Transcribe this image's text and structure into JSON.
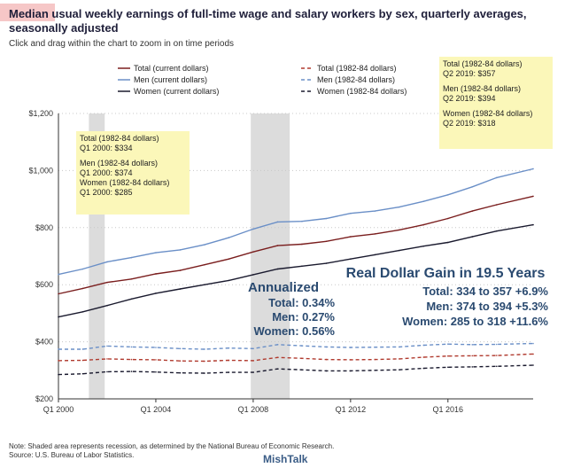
{
  "header": {
    "title": "Median usual weekly earnings of full-time wage and salary workers by sex, quarterly averages, seasonally adjusted",
    "subtitle": "Click and drag within the chart to zoom in on time periods"
  },
  "legend": {
    "items": [
      {
        "label": "Total (current dollars)",
        "color": "#7a1e1e",
        "dash": "solid"
      },
      {
        "label": "Men (current dollars)",
        "color": "#6a8fc7",
        "dash": "solid"
      },
      {
        "label": "Women (current dollars)",
        "color": "#1a1a2e",
        "dash": "solid"
      },
      {
        "label": "Total (1982-84 dollars)",
        "color": "#b03a2e",
        "dash": "dashed"
      },
      {
        "label": "Men (1982-84 dollars)",
        "color": "#6a8fc7",
        "dash": "dashed"
      },
      {
        "label": "Women (1982-84 dollars)",
        "color": "#1a1a2e",
        "dash": "dashed"
      }
    ]
  },
  "callouts": {
    "q1_2000": {
      "total_hdr": "Total (1982-84 dollars)",
      "total_val": "Q1 2000: $334",
      "men_hdr": "Men (1982-84 dollars)",
      "men_val": "Q1 2000: $374",
      "women_hdr": "Women (1982-84 dollars)",
      "women_val": "Q1 2000: $285"
    },
    "q2_2019": {
      "total_hdr": "Total (1982-84 dollars)",
      "total_val": "Q2 2019: $357",
      "men_hdr": "Men (1982-84 dollars)",
      "men_val": "Q2 2019: $394",
      "women_hdr": "Women (1982-84 dollars)",
      "women_val": "Q2 2019: $318"
    }
  },
  "annotations": {
    "annualized": {
      "title": "Annualized",
      "total": "Total: 0.34%",
      "men": "Men: 0.27%",
      "women": "Women: 0.56%"
    },
    "real_gain": {
      "title": "Real Dollar Gain in 19.5 Years",
      "total": "Total: 334 to 357 +6.9%",
      "men": "Men: 374 to 394 +5.3%",
      "women": "Women: 285 to 318 +11.6%"
    }
  },
  "footer": {
    "note": "Note: Shaded area represents recession, as determined by the National Bureau of Economic Research.",
    "source": "Source: U.S. Bureau of Labor Statistics.",
    "brand": "MishTalk"
  },
  "chart_data": {
    "type": "line",
    "x_start": 2000.0,
    "x_end": 2019.5,
    "ylim": [
      200,
      1200
    ],
    "y_ticks": [
      "$200",
      "$400",
      "$600",
      "$800",
      "$1,000",
      "$1,200"
    ],
    "y_tick_values": [
      200,
      400,
      600,
      800,
      1000,
      1200
    ],
    "x_ticks": [
      "Q1 2000",
      "Q1 2004",
      "Q1 2008",
      "Q1 2012",
      "Q1 2016"
    ],
    "x_tick_values": [
      2000,
      2004,
      2008,
      2012,
      2016
    ],
    "recessions": [
      [
        2001.25,
        2001.9
      ],
      [
        2007.9,
        2009.5
      ]
    ],
    "grid": "horizontal dotted",
    "series": [
      {
        "name": "Men (current dollars)",
        "color": "#6a8fc7",
        "dash": "solid",
        "x": [
          2000,
          2001,
          2002,
          2003,
          2004,
          2005,
          2006,
          2007,
          2008,
          2009,
          2010,
          2011,
          2012,
          2013,
          2014,
          2015,
          2016,
          2017,
          2018,
          2019.5
        ],
        "values": [
          636,
          655,
          680,
          695,
          712,
          722,
          740,
          765,
          795,
          820,
          822,
          832,
          850,
          858,
          872,
          892,
          915,
          943,
          975,
          1006
        ]
      },
      {
        "name": "Total (current dollars)",
        "color": "#7a1e1e",
        "dash": "solid",
        "x": [
          2000,
          2001,
          2002,
          2003,
          2004,
          2005,
          2006,
          2007,
          2008,
          2009,
          2010,
          2011,
          2012,
          2013,
          2014,
          2015,
          2016,
          2017,
          2018,
          2019.5
        ],
        "values": [
          568,
          587,
          608,
          620,
          638,
          650,
          670,
          690,
          715,
          737,
          742,
          752,
          768,
          778,
          792,
          810,
          832,
          858,
          880,
          910
        ]
      },
      {
        "name": "Women (current dollars)",
        "color": "#1a1a2e",
        "dash": "solid",
        "x": [
          2000,
          2001,
          2002,
          2003,
          2004,
          2005,
          2006,
          2007,
          2008,
          2009,
          2010,
          2011,
          2012,
          2013,
          2014,
          2015,
          2016,
          2017,
          2018,
          2019.5
        ],
        "values": [
          487,
          505,
          527,
          550,
          570,
          585,
          600,
          615,
          635,
          655,
          665,
          675,
          690,
          705,
          720,
          735,
          748,
          768,
          788,
          810
        ]
      },
      {
        "name": "Men (1982-84 dollars)",
        "color": "#6a8fc7",
        "dash": "dashed",
        "x": [
          2000,
          2001,
          2002,
          2003,
          2004,
          2005,
          2006,
          2007,
          2008,
          2009,
          2010,
          2011,
          2012,
          2013,
          2014,
          2015,
          2016,
          2017,
          2018,
          2019.5
        ],
        "values": [
          374,
          374,
          385,
          382,
          380,
          376,
          374,
          378,
          376,
          390,
          386,
          382,
          380,
          381,
          382,
          388,
          392,
          390,
          391,
          394
        ]
      },
      {
        "name": "Total (1982-84 dollars)",
        "color": "#b03a2e",
        "dash": "dashed",
        "x": [
          2000,
          2001,
          2002,
          2003,
          2004,
          2005,
          2006,
          2007,
          2008,
          2009,
          2010,
          2011,
          2012,
          2013,
          2014,
          2015,
          2016,
          2017,
          2018,
          2019.5
        ],
        "values": [
          334,
          335,
          340,
          338,
          337,
          333,
          332,
          335,
          334,
          345,
          342,
          338,
          337,
          338,
          340,
          346,
          350,
          351,
          352,
          357
        ]
      },
      {
        "name": "Women (1982-84 dollars)",
        "color": "#1a1a2e",
        "dash": "dashed",
        "x": [
          2000,
          2001,
          2002,
          2003,
          2004,
          2005,
          2006,
          2007,
          2008,
          2009,
          2010,
          2011,
          2012,
          2013,
          2014,
          2015,
          2016,
          2017,
          2018,
          2019.5
        ],
        "values": [
          285,
          288,
          295,
          296,
          294,
          291,
          290,
          293,
          293,
          305,
          302,
          298,
          298,
          300,
          302,
          307,
          311,
          312,
          314,
          318
        ]
      }
    ]
  }
}
